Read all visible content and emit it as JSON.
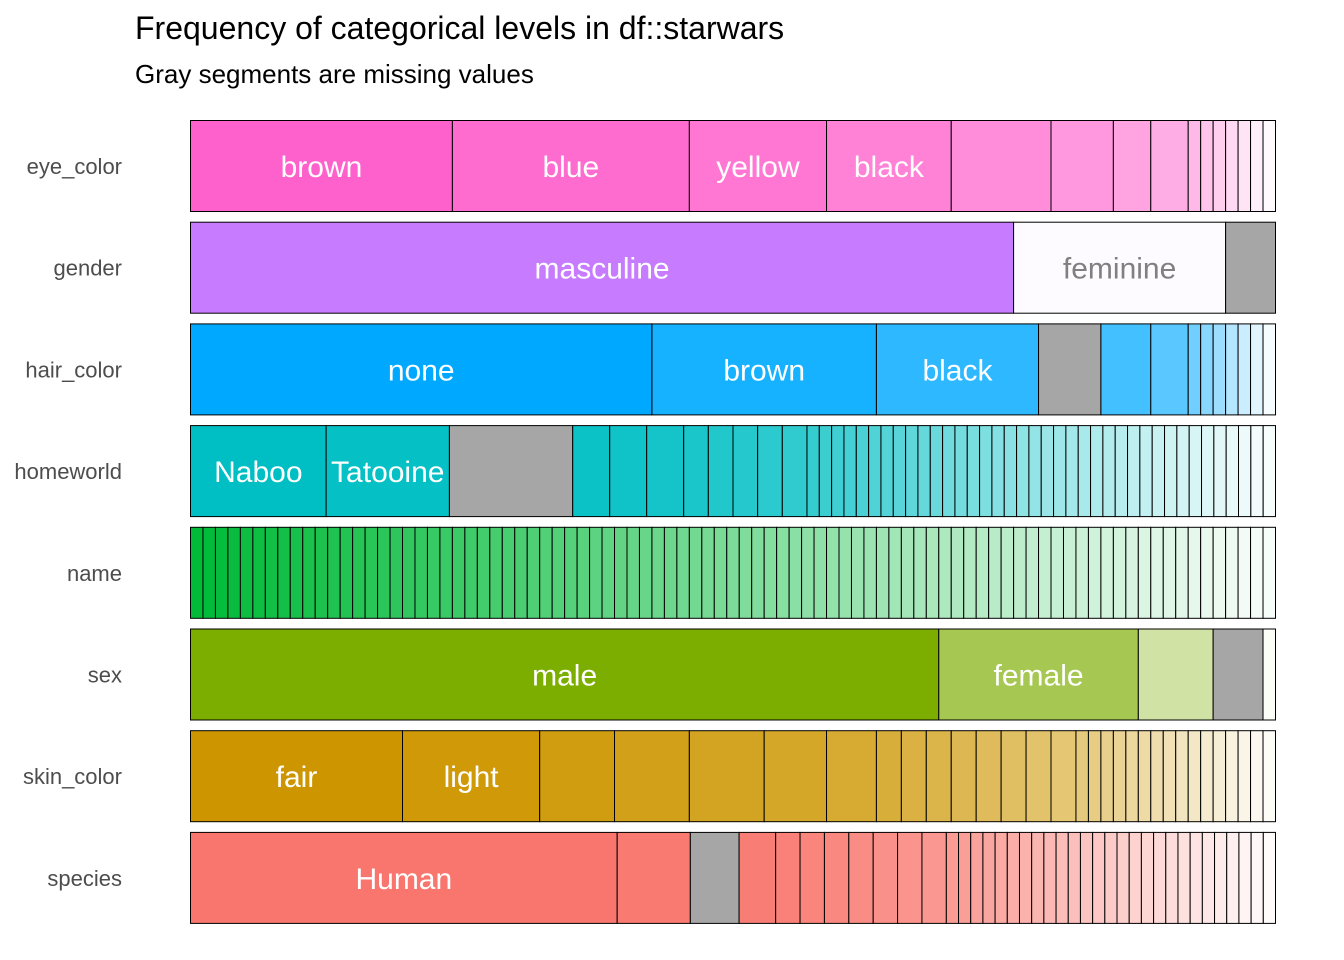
{
  "chart_data": {
    "type": "bar",
    "title": "Frequency of categorical levels in df::starwars",
    "subtitle": "Gray segments are missing values",
    "total_n": 87,
    "colors": {
      "missing": "#a6a6a6",
      "text_dark": "#808080",
      "text_light": "#ffffff"
    },
    "series": [
      {
        "name": "eye_color",
        "color": "#ff61cc",
        "segments": [
          {
            "label": "brown",
            "value": 21
          },
          {
            "label": "blue",
            "value": 19
          },
          {
            "label": "yellow",
            "value": 11
          },
          {
            "label": "black",
            "value": 10
          },
          {
            "label": "",
            "value": 8
          },
          {
            "label": "",
            "value": 5
          },
          {
            "label": "",
            "value": 3
          },
          {
            "label": "",
            "value": 3
          },
          {
            "label": "",
            "value": 1
          },
          {
            "label": "",
            "value": 1
          },
          {
            "label": "",
            "value": 1
          },
          {
            "label": "",
            "value": 1
          },
          {
            "label": "",
            "value": 1
          },
          {
            "label": "",
            "value": 1
          },
          {
            "label": "",
            "value": 1
          }
        ]
      },
      {
        "name": "gender",
        "color": "#c77cff",
        "segments": [
          {
            "label": "masculine",
            "value": 66
          },
          {
            "label": "feminine",
            "value": 17
          },
          {
            "label": "",
            "value": 4,
            "missing": true
          }
        ]
      },
      {
        "name": "hair_color",
        "color": "#00a9ff",
        "segments": [
          {
            "label": "none",
            "value": 37
          },
          {
            "label": "brown",
            "value": 18
          },
          {
            "label": "black",
            "value": 13
          },
          {
            "label": "",
            "value": 5,
            "missing": true
          },
          {
            "label": "",
            "value": 4
          },
          {
            "label": "",
            "value": 3
          },
          {
            "label": "",
            "value": 1
          },
          {
            "label": "",
            "value": 1
          },
          {
            "label": "",
            "value": 1
          },
          {
            "label": "",
            "value": 1
          },
          {
            "label": "",
            "value": 1
          },
          {
            "label": "",
            "value": 1
          },
          {
            "label": "",
            "value": 1
          }
        ]
      },
      {
        "name": "homeworld",
        "color": "#00bfc4",
        "segments": [
          {
            "label": "Naboo",
            "value": 11
          },
          {
            "label": "Tatooine",
            "value": 10
          },
          {
            "label": "",
            "value": 10,
            "missing": true
          },
          {
            "label": "",
            "value": 3
          },
          {
            "label": "",
            "value": 3
          },
          {
            "label": "",
            "value": 3
          },
          {
            "label": "",
            "value": 2
          },
          {
            "label": "",
            "value": 2
          },
          {
            "label": "",
            "value": 2
          },
          {
            "label": "",
            "value": 2
          },
          {
            "label": "",
            "value": 2
          },
          {
            "label": "",
            "value": 1
          },
          {
            "label": "",
            "value": 1
          },
          {
            "label": "",
            "value": 1
          },
          {
            "label": "",
            "value": 1
          },
          {
            "label": "",
            "value": 1
          },
          {
            "label": "",
            "value": 1
          },
          {
            "label": "",
            "value": 1
          },
          {
            "label": "",
            "value": 1
          },
          {
            "label": "",
            "value": 1
          },
          {
            "label": "",
            "value": 1
          },
          {
            "label": "",
            "value": 1
          },
          {
            "label": "",
            "value": 1
          },
          {
            "label": "",
            "value": 1
          },
          {
            "label": "",
            "value": 1
          },
          {
            "label": "",
            "value": 1
          },
          {
            "label": "",
            "value": 1
          },
          {
            "label": "",
            "value": 1
          },
          {
            "label": "",
            "value": 1
          },
          {
            "label": "",
            "value": 1
          },
          {
            "label": "",
            "value": 1
          },
          {
            "label": "",
            "value": 1
          },
          {
            "label": "",
            "value": 1
          },
          {
            "label": "",
            "value": 1
          },
          {
            "label": "",
            "value": 1
          },
          {
            "label": "",
            "value": 1
          },
          {
            "label": "",
            "value": 1
          },
          {
            "label": "",
            "value": 1
          },
          {
            "label": "",
            "value": 1
          },
          {
            "label": "",
            "value": 1
          },
          {
            "label": "",
            "value": 1
          },
          {
            "label": "",
            "value": 1
          },
          {
            "label": "",
            "value": 1
          },
          {
            "label": "",
            "value": 1
          },
          {
            "label": "",
            "value": 1
          },
          {
            "label": "",
            "value": 1
          },
          {
            "label": "",
            "value": 1
          },
          {
            "label": "",
            "value": 1
          },
          {
            "label": "",
            "value": 1
          }
        ]
      },
      {
        "name": "name",
        "color": "#00ba38",
        "segments": [
          {
            "label": "",
            "value": 1
          },
          {
            "label": "",
            "value": 1
          },
          {
            "label": "",
            "value": 1
          },
          {
            "label": "",
            "value": 1
          },
          {
            "label": "",
            "value": 1
          },
          {
            "label": "",
            "value": 1
          },
          {
            "label": "",
            "value": 1
          },
          {
            "label": "",
            "value": 1
          },
          {
            "label": "",
            "value": 1
          },
          {
            "label": "",
            "value": 1
          },
          {
            "label": "",
            "value": 1
          },
          {
            "label": "",
            "value": 1
          },
          {
            "label": "",
            "value": 1
          },
          {
            "label": "",
            "value": 1
          },
          {
            "label": "",
            "value": 1
          },
          {
            "label": "",
            "value": 1
          },
          {
            "label": "",
            "value": 1
          },
          {
            "label": "",
            "value": 1
          },
          {
            "label": "",
            "value": 1
          },
          {
            "label": "",
            "value": 1
          },
          {
            "label": "",
            "value": 1
          },
          {
            "label": "",
            "value": 1
          },
          {
            "label": "",
            "value": 1
          },
          {
            "label": "",
            "value": 1
          },
          {
            "label": "",
            "value": 1
          },
          {
            "label": "",
            "value": 1
          },
          {
            "label": "",
            "value": 1
          },
          {
            "label": "",
            "value": 1
          },
          {
            "label": "",
            "value": 1
          },
          {
            "label": "",
            "value": 1
          },
          {
            "label": "",
            "value": 1
          },
          {
            "label": "",
            "value": 1
          },
          {
            "label": "",
            "value": 1
          },
          {
            "label": "",
            "value": 1
          },
          {
            "label": "",
            "value": 1
          },
          {
            "label": "",
            "value": 1
          },
          {
            "label": "",
            "value": 1
          },
          {
            "label": "",
            "value": 1
          },
          {
            "label": "",
            "value": 1
          },
          {
            "label": "",
            "value": 1
          },
          {
            "label": "",
            "value": 1
          },
          {
            "label": "",
            "value": 1
          },
          {
            "label": "",
            "value": 1
          },
          {
            "label": "",
            "value": 1
          },
          {
            "label": "",
            "value": 1
          },
          {
            "label": "",
            "value": 1
          },
          {
            "label": "",
            "value": 1
          },
          {
            "label": "",
            "value": 1
          },
          {
            "label": "",
            "value": 1
          },
          {
            "label": "",
            "value": 1
          },
          {
            "label": "",
            "value": 1
          },
          {
            "label": "",
            "value": 1
          },
          {
            "label": "",
            "value": 1
          },
          {
            "label": "",
            "value": 1
          },
          {
            "label": "",
            "value": 1
          },
          {
            "label": "",
            "value": 1
          },
          {
            "label": "",
            "value": 1
          },
          {
            "label": "",
            "value": 1
          },
          {
            "label": "",
            "value": 1
          },
          {
            "label": "",
            "value": 1
          },
          {
            "label": "",
            "value": 1
          },
          {
            "label": "",
            "value": 1
          },
          {
            "label": "",
            "value": 1
          },
          {
            "label": "",
            "value": 1
          },
          {
            "label": "",
            "value": 1
          },
          {
            "label": "",
            "value": 1
          },
          {
            "label": "",
            "value": 1
          },
          {
            "label": "",
            "value": 1
          },
          {
            "label": "",
            "value": 1
          },
          {
            "label": "",
            "value": 1
          },
          {
            "label": "",
            "value": 1
          },
          {
            "label": "",
            "value": 1
          },
          {
            "label": "",
            "value": 1
          },
          {
            "label": "",
            "value": 1
          },
          {
            "label": "",
            "value": 1
          },
          {
            "label": "",
            "value": 1
          },
          {
            "label": "",
            "value": 1
          },
          {
            "label": "",
            "value": 1
          },
          {
            "label": "",
            "value": 1
          },
          {
            "label": "",
            "value": 1
          },
          {
            "label": "",
            "value": 1
          },
          {
            "label": "",
            "value": 1
          },
          {
            "label": "",
            "value": 1
          },
          {
            "label": "",
            "value": 1
          },
          {
            "label": "",
            "value": 1
          },
          {
            "label": "",
            "value": 1
          },
          {
            "label": "",
            "value": 1
          }
        ]
      },
      {
        "name": "sex",
        "color": "#7cae00",
        "segments": [
          {
            "label": "male",
            "value": 60
          },
          {
            "label": "female",
            "value": 16
          },
          {
            "label": "",
            "value": 6
          },
          {
            "label": "",
            "value": 4,
            "missing": true
          },
          {
            "label": "",
            "value": 1
          }
        ]
      },
      {
        "name": "skin_color",
        "color": "#cd9600",
        "segments": [
          {
            "label": "fair",
            "value": 17
          },
          {
            "label": "light",
            "value": 11
          },
          {
            "label": "",
            "value": 6
          },
          {
            "label": "",
            "value": 6
          },
          {
            "label": "",
            "value": 6
          },
          {
            "label": "",
            "value": 5
          },
          {
            "label": "",
            "value": 4
          },
          {
            "label": "",
            "value": 2
          },
          {
            "label": "",
            "value": 2
          },
          {
            "label": "",
            "value": 2
          },
          {
            "label": "",
            "value": 2
          },
          {
            "label": "",
            "value": 2
          },
          {
            "label": "",
            "value": 2
          },
          {
            "label": "",
            "value": 2
          },
          {
            "label": "",
            "value": 2
          },
          {
            "label": "",
            "value": 1
          },
          {
            "label": "",
            "value": 1
          },
          {
            "label": "",
            "value": 1
          },
          {
            "label": "",
            "value": 1
          },
          {
            "label": "",
            "value": 1
          },
          {
            "label": "",
            "value": 1
          },
          {
            "label": "",
            "value": 1
          },
          {
            "label": "",
            "value": 1
          },
          {
            "label": "",
            "value": 1
          },
          {
            "label": "",
            "value": 1
          },
          {
            "label": "",
            "value": 1
          },
          {
            "label": "",
            "value": 1
          },
          {
            "label": "",
            "value": 1
          },
          {
            "label": "",
            "value": 1
          },
          {
            "label": "",
            "value": 1
          },
          {
            "label": "",
            "value": 1
          }
        ]
      },
      {
        "name": "species",
        "color": "#f8766d",
        "segments": [
          {
            "label": "Human",
            "value": 35
          },
          {
            "label": "",
            "value": 6
          },
          {
            "label": "",
            "value": 4,
            "missing": true
          },
          {
            "label": "",
            "value": 3
          },
          {
            "label": "",
            "value": 2
          },
          {
            "label": "",
            "value": 2
          },
          {
            "label": "",
            "value": 2
          },
          {
            "label": "",
            "value": 2
          },
          {
            "label": "",
            "value": 2
          },
          {
            "label": "",
            "value": 2
          },
          {
            "label": "",
            "value": 2
          },
          {
            "label": "",
            "value": 1
          },
          {
            "label": "",
            "value": 1
          },
          {
            "label": "",
            "value": 1
          },
          {
            "label": "",
            "value": 1
          },
          {
            "label": "",
            "value": 1
          },
          {
            "label": "",
            "value": 1
          },
          {
            "label": "",
            "value": 1
          },
          {
            "label": "",
            "value": 1
          },
          {
            "label": "",
            "value": 1
          },
          {
            "label": "",
            "value": 1
          },
          {
            "label": "",
            "value": 1
          },
          {
            "label": "",
            "value": 1
          },
          {
            "label": "",
            "value": 1
          },
          {
            "label": "",
            "value": 1
          },
          {
            "label": "",
            "value": 1
          },
          {
            "label": "",
            "value": 1
          },
          {
            "label": "",
            "value": 1
          },
          {
            "label": "",
            "value": 1
          },
          {
            "label": "",
            "value": 1
          },
          {
            "label": "",
            "value": 1
          },
          {
            "label": "",
            "value": 1
          },
          {
            "label": "",
            "value": 1
          },
          {
            "label": "",
            "value": 1
          },
          {
            "label": "",
            "value": 1
          },
          {
            "label": "",
            "value": 1
          },
          {
            "label": "",
            "value": 1
          },
          {
            "label": "",
            "value": 1
          }
        ]
      }
    ]
  }
}
